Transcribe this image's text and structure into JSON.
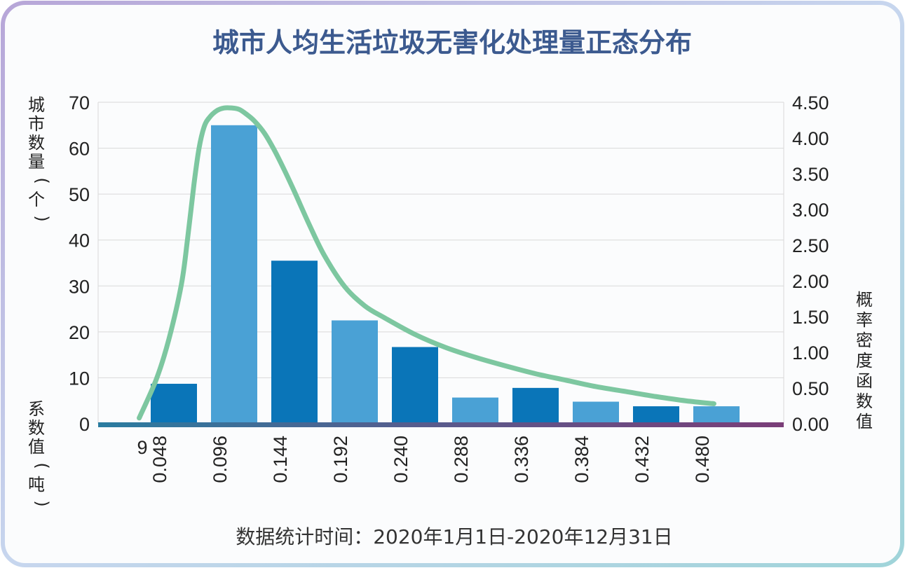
{
  "chart_data": {
    "type": "bar",
    "title": "城市人均生活垃圾无害化处理量正态分布",
    "x_ticks": [
      "9",
      "0.048",
      "0.096",
      "0.144",
      "0.192",
      "0.240",
      "0.288",
      "0.336",
      "0.384",
      "0.432",
      "0.480"
    ],
    "xlabel": "系数值(吨)",
    "ylabel_left": "城市数量(个)",
    "ylabel_right": "概率密度函数值",
    "ylim_left": [
      0,
      70
    ],
    "ylim_right": [
      0,
      4.5
    ],
    "y_ticks_left": [
      "0",
      "10",
      "20",
      "30",
      "40",
      "50",
      "60",
      "70"
    ],
    "y_ticks_right": [
      "0.00",
      "0.50",
      "1.00",
      "1.50",
      "2.00",
      "2.50",
      "3.00",
      "3.50",
      "4.00",
      "4.50"
    ],
    "grid": true,
    "series": [
      {
        "type": "bar",
        "axis": "left",
        "x": [
          0.024,
          0.072,
          0.12,
          0.168,
          0.216,
          0.264,
          0.312,
          0.36,
          0.408,
          0.456
        ],
        "values": [
          8.7,
          65,
          35.5,
          22.5,
          16.7,
          5.7,
          7.8,
          4.8,
          3.8,
          3.8
        ],
        "colors": [
          "#0a75b8",
          "#4aa1d5",
          "#0a75b8",
          "#4aa1d5",
          "#0a75b8",
          "#4aa1d5",
          "#0a75b8",
          "#4aa1d5",
          "#0a75b8",
          "#4aa1d5"
        ]
      },
      {
        "type": "line",
        "axis": "right",
        "color": "#7dc7a0",
        "x": [
          -0.0036,
          0.01,
          0.02,
          0.03,
          0.035,
          0.04,
          0.044,
          0.048,
          0.052,
          0.058,
          0.064,
          0.07,
          0.076,
          0.082,
          0.088,
          0.096,
          0.104,
          0.112,
          0.12,
          0.132,
          0.144,
          0.16,
          0.176,
          0.192,
          0.216,
          0.24,
          0.264,
          0.288,
          0.312,
          0.336,
          0.36,
          0.384,
          0.408,
          0.432,
          0.454
        ],
        "y": [
          0.08,
          0.62,
          1.18,
          1.95,
          2.6,
          3.35,
          3.85,
          4.15,
          4.28,
          4.38,
          4.42,
          4.42,
          4.4,
          4.33,
          4.24,
          4.07,
          3.83,
          3.55,
          3.25,
          2.78,
          2.35,
          1.92,
          1.65,
          1.48,
          1.25,
          1.07,
          0.93,
          0.81,
          0.7,
          0.61,
          0.52,
          0.45,
          0.38,
          0.32,
          0.28
        ]
      }
    ]
  },
  "footer": "数据统计时间：2020年1月1日-2020年12月31日",
  "colors": {
    "title": "#3c5a8f",
    "bar_dark": "#0a75b8",
    "bar_light": "#4aa1d5",
    "curve": "#7dc7a0",
    "grid": "#d9d9d9"
  }
}
